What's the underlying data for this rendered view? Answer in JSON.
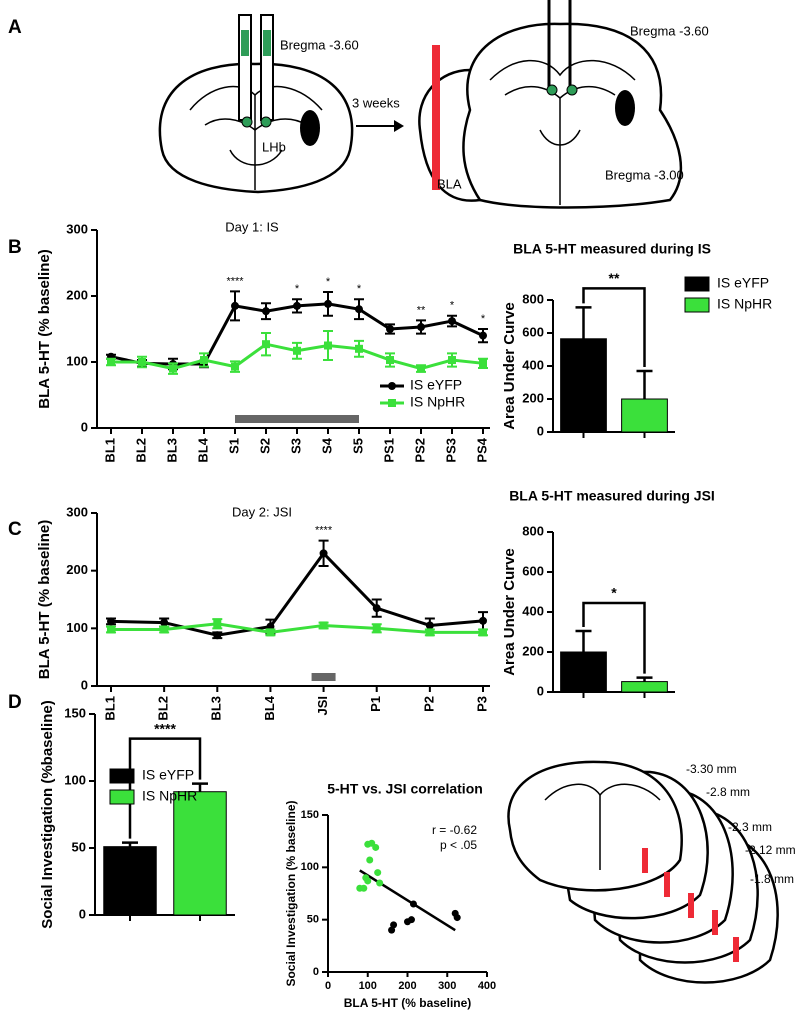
{
  "panel_labels": [
    "A",
    "B",
    "C",
    "D"
  ],
  "panel_a": {
    "bregma_left": "Bregma -3.60",
    "lhb": "LHb",
    "arrow": "3 weeks",
    "bregma_right_top": "Bregma -3.60",
    "bla": "BLA",
    "bregma_right_bottom": "Bregma -3.00"
  },
  "panel_d_histology": {
    "levels": [
      "-3.30 mm",
      "-2.8 mm",
      "-2.3 mm",
      "-2.12 mm",
      "-1.8 mm"
    ]
  },
  "chart_data": [
    {
      "type": "line",
      "title": "Day 1: IS",
      "ylabel": "BLA 5-HT (% baseline)",
      "categories": [
        "BL1",
        "BL2",
        "BL3",
        "BL4",
        "S1",
        "S2",
        "S3",
        "S4",
        "S5",
        "PS1",
        "PS2",
        "PS3",
        "PS4"
      ],
      "ylim": [
        0,
        300
      ],
      "yticks": [
        0,
        100,
        200,
        300
      ],
      "series": [
        {
          "name": "IS eYFP",
          "color": "#000000",
          "marker": "circle",
          "values": [
            108,
            98,
            97,
            97,
            185,
            177,
            185,
            188,
            180,
            150,
            153,
            162,
            140
          ],
          "errors": [
            3,
            5,
            8,
            5,
            22,
            12,
            10,
            18,
            15,
            7,
            10,
            8,
            10
          ]
        },
        {
          "name": "IS NpHR",
          "color": "#3be03b",
          "marker": "square",
          "values": [
            100,
            100,
            90,
            103,
            93,
            127,
            117,
            125,
            120,
            103,
            90,
            103,
            98
          ],
          "errors": [
            5,
            8,
            8,
            10,
            8,
            17,
            12,
            22,
            12,
            10,
            5,
            10,
            7
          ]
        }
      ],
      "stimulus": [
        "S1",
        "S5"
      ],
      "annotations": [
        {
          "x": "S1",
          "text": "****"
        },
        {
          "x": "S3",
          "text": "*"
        },
        {
          "x": "S4",
          "text": "*"
        },
        {
          "x": "S5",
          "text": "*"
        },
        {
          "x": "PS2",
          "text": "**"
        },
        {
          "x": "PS3",
          "text": "*"
        },
        {
          "x": "PS4",
          "text": "*"
        }
      ],
      "legend": "lower right"
    },
    {
      "type": "bar",
      "title": "BLA 5-HT measured during IS",
      "ylabel": "Area Under Curve",
      "categories": [
        "IS eYFP",
        "IS NpHR"
      ],
      "values": [
        565,
        200
      ],
      "errors": [
        190,
        170
      ],
      "colors": [
        "#000000",
        "#3be03b"
      ],
      "ylim": [
        0,
        800
      ],
      "yticks": [
        0,
        200,
        400,
        600,
        800
      ],
      "significance": "**",
      "legend": "right"
    },
    {
      "type": "line",
      "title": "Day 2: JSI",
      "ylabel": "BLA 5-HT (% baseline)",
      "categories": [
        "BL1",
        "BL2",
        "BL3",
        "BL4",
        "JSI",
        "P1",
        "P2",
        "P3"
      ],
      "ylim": [
        0,
        300
      ],
      "yticks": [
        0,
        100,
        200,
        300
      ],
      "series": [
        {
          "color": "#000000",
          "marker": "circle",
          "values": [
            112,
            110,
            88,
            103,
            230,
            135,
            105,
            113
          ],
          "errors": [
            5,
            7,
            5,
            12,
            22,
            15,
            12,
            15
          ]
        },
        {
          "color": "#3be03b",
          "marker": "square",
          "values": [
            98,
            98,
            108,
            93,
            105,
            100,
            93,
            93
          ],
          "errors": [
            5,
            5,
            8,
            5,
            5,
            7,
            5,
            5
          ]
        }
      ],
      "stimulus": [
        "JSI",
        "JSI"
      ],
      "annotations": [
        {
          "x": "JSI",
          "text": "****"
        }
      ]
    },
    {
      "type": "bar",
      "title": "BLA 5-HT measured during JSI",
      "ylabel": "Area Under Curve",
      "values": [
        200,
        52
      ],
      "errors": [
        105,
        20
      ],
      "colors": [
        "#000000",
        "#3be03b"
      ],
      "ylim": [
        0,
        800
      ],
      "yticks": [
        0,
        200,
        400,
        600,
        800
      ],
      "significance": "*"
    },
    {
      "type": "bar",
      "ylabel": "Social Investigation (%baseline)",
      "categories": [
        "IS eYFP",
        "IS NpHR"
      ],
      "values": [
        51,
        92
      ],
      "errors": [
        3,
        6
      ],
      "colors": [
        "#000000",
        "#3be03b"
      ],
      "ylim": [
        0,
        150
      ],
      "yticks": [
        0,
        50,
        100,
        150
      ],
      "significance": "****",
      "legend": "upper left"
    },
    {
      "type": "scatter",
      "title": "5-HT vs. JSI correlation",
      "xlabel": "BLA 5-HT (% baseline)",
      "ylabel": "Social Investigation (% baseline)",
      "xlim": [
        0,
        400
      ],
      "xticks": [
        0,
        100,
        200,
        300,
        400
      ],
      "ylim": [
        0,
        150
      ],
      "yticks": [
        0,
        50,
        100,
        150
      ],
      "series": [
        {
          "color": "#3be03b",
          "x": [
            80,
            95,
            100,
            100,
            105,
            110,
            120,
            125,
            130,
            90
          ],
          "y": [
            80,
            90,
            87,
            122,
            107,
            123,
            119,
            95,
            85,
            80
          ]
        },
        {
          "color": "#000000",
          "x": [
            160,
            165,
            200,
            210,
            215,
            320,
            325
          ],
          "y": [
            40,
            45,
            48,
            50,
            65,
            56,
            52
          ]
        }
      ],
      "fit": {
        "x": [
          80,
          320
        ],
        "y": [
          97,
          40
        ]
      },
      "annotations": [
        "r = -0.62",
        "p < .05"
      ]
    }
  ]
}
